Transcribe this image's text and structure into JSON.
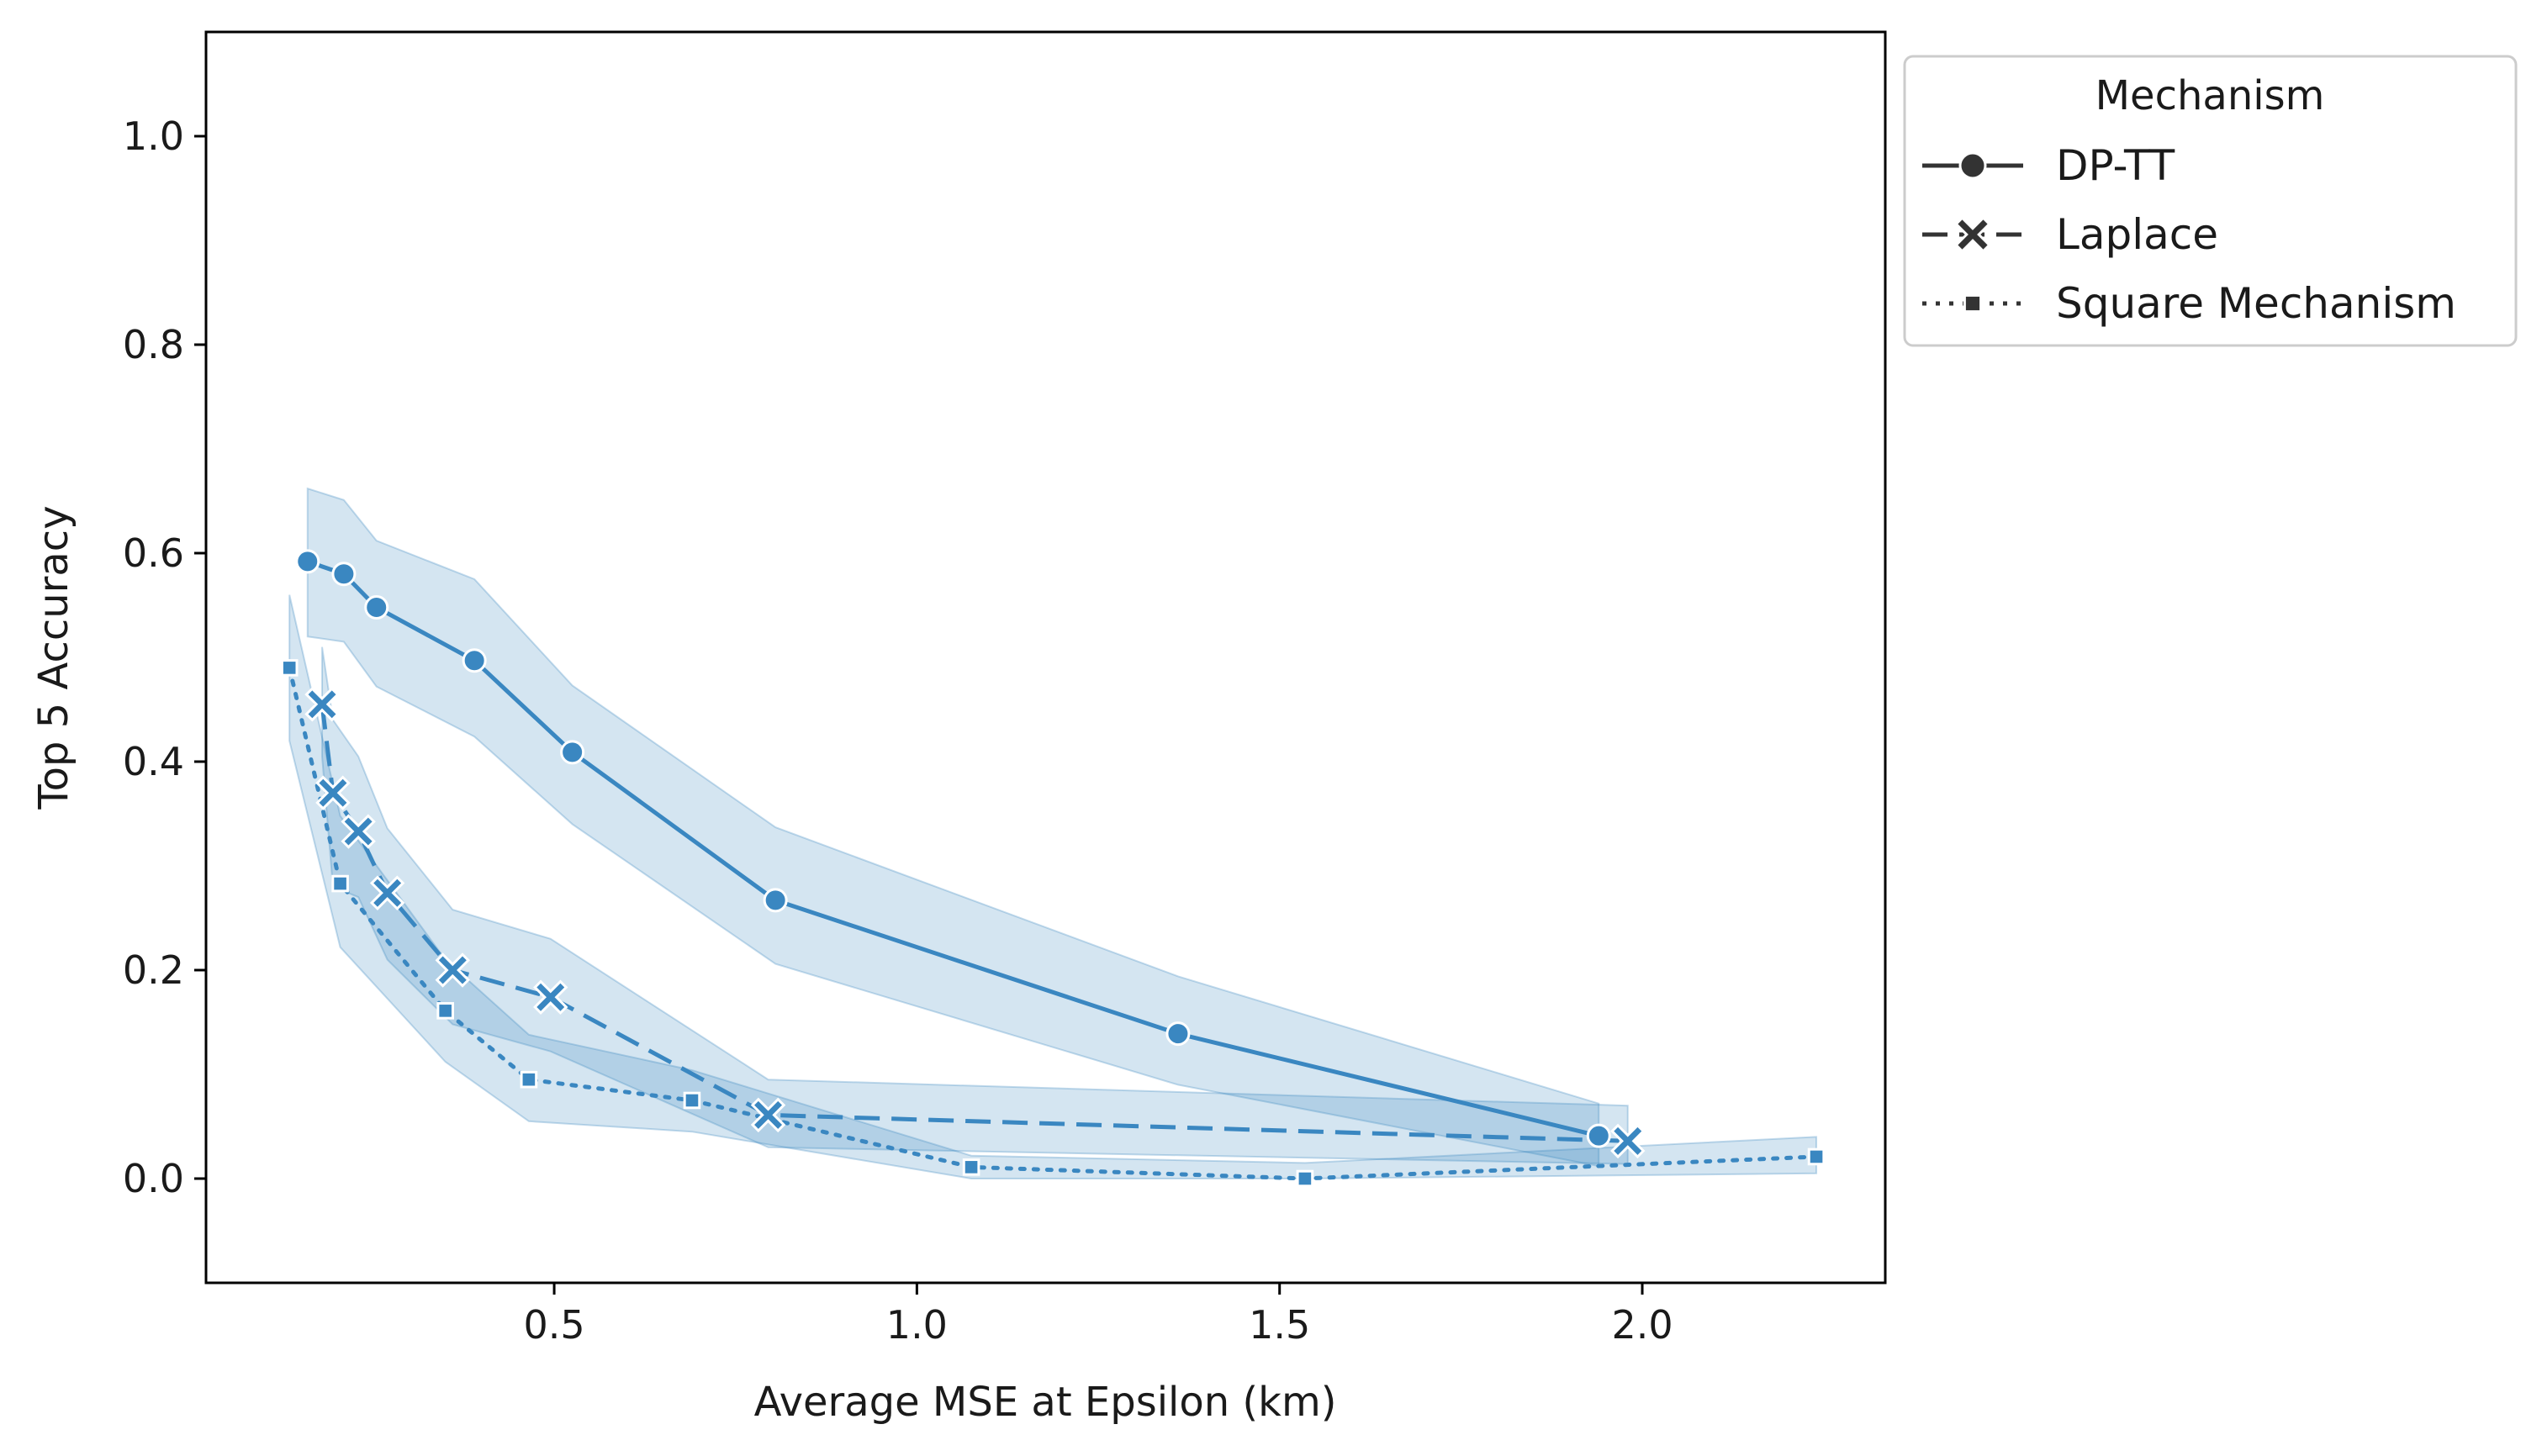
{
  "chart_data": {
    "type": "line",
    "title": "",
    "xlabel": "Average MSE at Epsilon (km)",
    "ylabel": "Top 5 Accuracy",
    "xlim": [
      0.02,
      2.335
    ],
    "ylim": [
      -0.1,
      1.1
    ],
    "xticks": [
      0.5,
      1.0,
      1.5,
      2.0
    ],
    "xtick_labels": [
      "0.5",
      "1.0",
      "1.5",
      "2.0"
    ],
    "yticks": [
      0.0,
      0.2,
      0.4,
      0.6,
      0.8,
      1.0
    ],
    "ytick_labels": [
      "0.0",
      "0.2",
      "0.4",
      "0.6",
      "0.8",
      "1.0"
    ],
    "grid": false,
    "legend": {
      "title": "Mechanism",
      "placement": "outside upper-right"
    },
    "colors": {
      "line": "#3a87c1",
      "band": "#3a87c1",
      "legend_marker": "#333333",
      "frame": "#000000"
    },
    "series": [
      {
        "name": "DP-TT",
        "marker": "circle",
        "linestyle": "solid",
        "x": [
          0.16,
          0.21,
          0.255,
          0.39,
          0.525,
          0.805,
          1.36,
          1.94
        ],
        "y": [
          0.592,
          0.58,
          0.548,
          0.497,
          0.409,
          0.267,
          0.139,
          0.041
        ],
        "ci_lower": [
          0.52,
          0.515,
          0.472,
          0.424,
          0.34,
          0.206,
          0.09,
          0.012
        ],
        "ci_upper": [
          0.662,
          0.651,
          0.612,
          0.575,
          0.473,
          0.337,
          0.194,
          0.072
        ]
      },
      {
        "name": "Laplace",
        "marker": "x",
        "linestyle": "dashed",
        "x": [
          0.18,
          0.195,
          0.23,
          0.27,
          0.36,
          0.495,
          0.795,
          1.98
        ],
        "y": [
          0.455,
          0.37,
          0.333,
          0.274,
          0.2,
          0.174,
          0.061,
          0.036
        ],
        "ci_lower": [
          0.405,
          0.28,
          0.27,
          0.21,
          0.148,
          0.122,
          0.03,
          0.014
        ],
        "ci_upper": [
          0.51,
          0.44,
          0.405,
          0.336,
          0.258,
          0.23,
          0.095,
          0.07
        ]
      },
      {
        "name": "Square Mechanism",
        "marker": "square",
        "linestyle": "dotted",
        "x": [
          0.135,
          0.205,
          0.35,
          0.465,
          0.69,
          1.075,
          1.535,
          2.24
        ],
        "y": [
          0.49,
          0.283,
          0.161,
          0.095,
          0.075,
          0.011,
          0.0,
          0.021
        ],
        "ci_lower": [
          0.42,
          0.222,
          0.112,
          0.055,
          0.045,
          0.0,
          0.0,
          0.005
        ],
        "ci_upper": [
          0.56,
          0.348,
          0.21,
          0.138,
          0.104,
          0.022,
          0.015,
          0.04
        ]
      }
    ]
  }
}
